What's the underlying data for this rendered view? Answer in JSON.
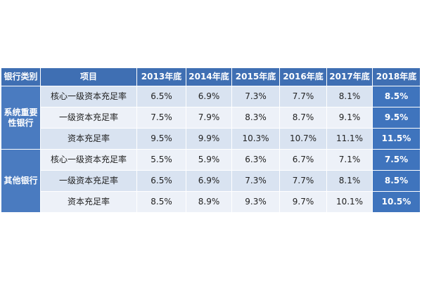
{
  "table": {
    "header": [
      "银行类别",
      "项目",
      "2013年底",
      "2014年底",
      "2015年底",
      "2016年底",
      "2017年底",
      "2018年底"
    ],
    "groups": [
      {
        "category": "系统重要性银行",
        "rows": [
          [
            "核心一级资本充足率",
            "6.5%",
            "6.9%",
            "7.3%",
            "7.7%",
            "8.1%",
            "8.5%"
          ],
          [
            "一级资本充足率",
            "7.5%",
            "7.9%",
            "8.3%",
            "8.7%",
            "9.1%",
            "9.5%"
          ],
          [
            "资本充足率",
            "9.5%",
            "9.9%",
            "10.3%",
            "10.7%",
            "11.1%",
            "11.5%"
          ]
        ]
      },
      {
        "category": "其他银行",
        "rows": [
          [
            "核心一级资本充足率",
            "5.5%",
            "5.9%",
            "6.3%",
            "6.7%",
            "7.1%",
            "7.5%"
          ],
          [
            "一级资本充足率",
            "6.5%",
            "6.9%",
            "7.3%",
            "7.7%",
            "8.1%",
            "8.5%"
          ],
          [
            "资本充足率",
            "8.5%",
            "8.9%",
            "9.3%",
            "9.7%",
            "10.1%",
            "10.5%"
          ]
        ]
      }
    ]
  }
}
